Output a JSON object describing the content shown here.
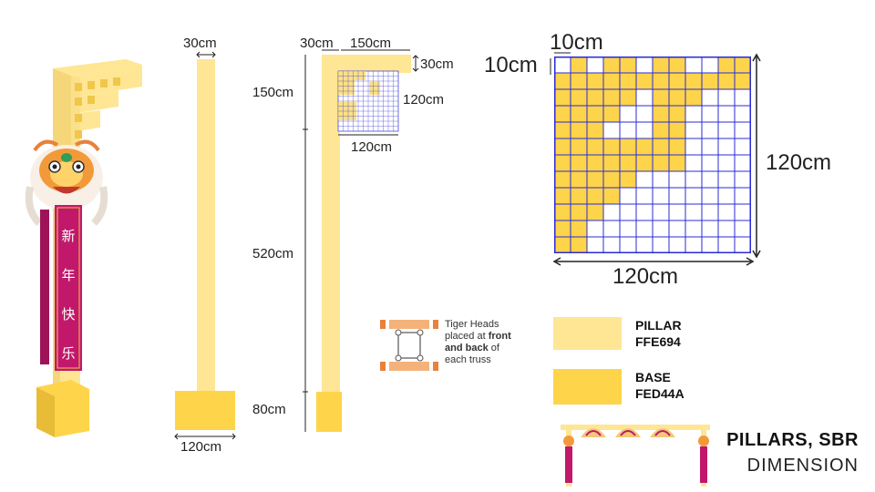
{
  "colors": {
    "pillar": "#FFE694",
    "base": "#FED44A",
    "grid_line": "#2b2bd6",
    "banner": "#c2186b",
    "accent_orange": "#e8823a"
  },
  "elevation": {
    "top_width": "30cm",
    "bottom_width": "120cm"
  },
  "side": {
    "width_label": "30cm",
    "arm_label": "150cm",
    "arm_thick_label": "30cm",
    "grid_h_label": "120cm",
    "grid_w_label": "120cm",
    "seg_top": "150cm",
    "seg_mid": "520cm",
    "seg_base": "80cm"
  },
  "grid_detail": {
    "cell_w_label": "10cm",
    "cell_h_label": "10cm",
    "height_label": "120cm",
    "width_label": "120cm"
  },
  "note": {
    "line1": "Tiger Heads",
    "line2_a": "placed at ",
    "line2_b": "front",
    "line3_a": "and back",
    "line3_b": " of",
    "line4": "each truss"
  },
  "legend": [
    {
      "name": "PILLAR",
      "code": "FFE694"
    },
    {
      "name": "BASE",
      "code": "FED44A"
    }
  ],
  "banner_text": [
    "新",
    "年",
    "快",
    "乐"
  ],
  "title": {
    "line1": "PILLARS, SBR",
    "line2": "DIMENSION"
  }
}
